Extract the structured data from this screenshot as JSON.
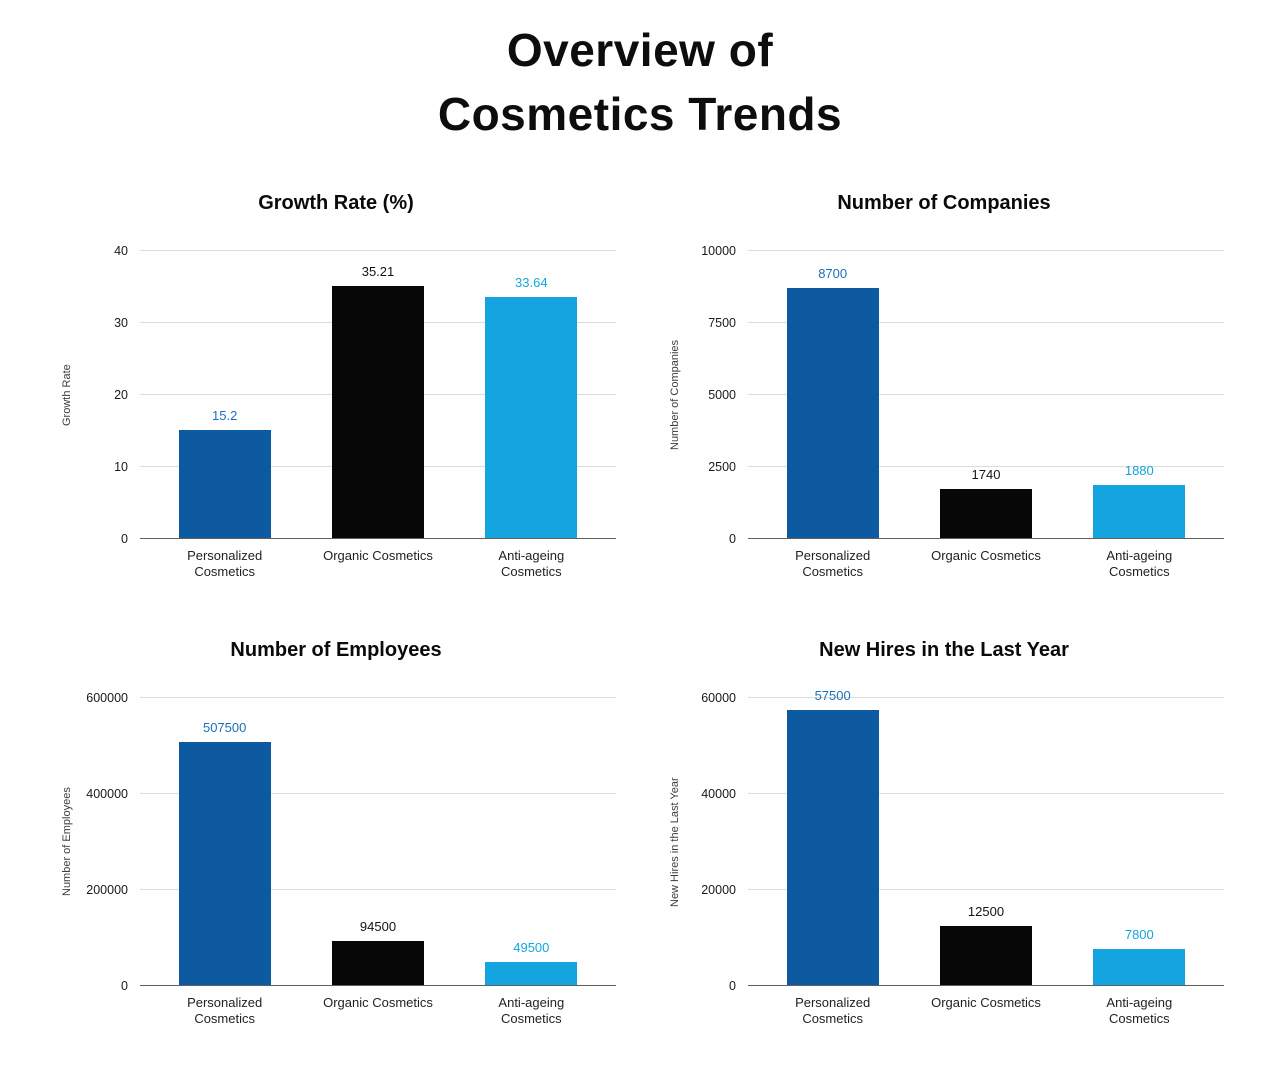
{
  "header": {
    "title_line1": "Overview of",
    "title_line2": "Cosmetics Trends"
  },
  "colors": {
    "bars": [
      "#0d5aa0",
      "#070707",
      "#14a4df"
    ],
    "value_labels": [
      "#1c6fb8",
      "#141414",
      "#14a4df"
    ],
    "gridline": "#dcdcdc",
    "axis": "#5f5f5f"
  },
  "chart_data": [
    {
      "type": "bar",
      "title": "Growth Rate (%)",
      "ylabel": "Growth Rate",
      "xlabel": "",
      "categories": [
        "Personalized\nCosmetics",
        "Organic Cosmetics",
        "Anti-ageing\nCosmetics"
      ],
      "values": [
        15.2,
        35.21,
        33.64
      ],
      "value_labels": [
        "15.2",
        "35.21",
        "33.64"
      ],
      "ylim": [
        0,
        40
      ],
      "yticks": [
        0,
        10,
        20,
        30,
        40
      ],
      "grid": true,
      "legend": false
    },
    {
      "type": "bar",
      "title": "Number of Companies",
      "ylabel": "Number of Companies",
      "xlabel": "",
      "categories": [
        "Personalized\nCosmetics",
        "Organic Cosmetics",
        "Anti-ageing\nCosmetics"
      ],
      "values": [
        8700,
        1740,
        1880
      ],
      "value_labels": [
        "8700",
        "1740",
        "1880"
      ],
      "ylim": [
        0,
        10000
      ],
      "yticks": [
        0,
        2500,
        5000,
        7500,
        10000
      ],
      "grid": true,
      "legend": false
    },
    {
      "type": "bar",
      "title": "Number of Employees",
      "ylabel": "Number of Employees",
      "xlabel": "",
      "categories": [
        "Personalized\nCosmetics",
        "Organic Cosmetics",
        "Anti-ageing\nCosmetics"
      ],
      "values": [
        507500,
        94500,
        49500
      ],
      "value_labels": [
        "507500",
        "94500",
        "49500"
      ],
      "ylim": [
        0,
        600000
      ],
      "yticks": [
        0,
        200000,
        400000,
        600000
      ],
      "grid": true,
      "legend": false
    },
    {
      "type": "bar",
      "title": "New Hires in the Last Year",
      "ylabel": "New Hires in the Last Year",
      "xlabel": "",
      "categories": [
        "Personalized\nCosmetics",
        "Organic Cosmetics",
        "Anti-ageing\nCosmetics"
      ],
      "values": [
        57500,
        12500,
        7800
      ],
      "value_labels": [
        "57500",
        "12500",
        "7800"
      ],
      "ylim": [
        0,
        60000
      ],
      "yticks": [
        0,
        20000,
        40000,
        60000
      ],
      "grid": true,
      "legend": false
    }
  ]
}
